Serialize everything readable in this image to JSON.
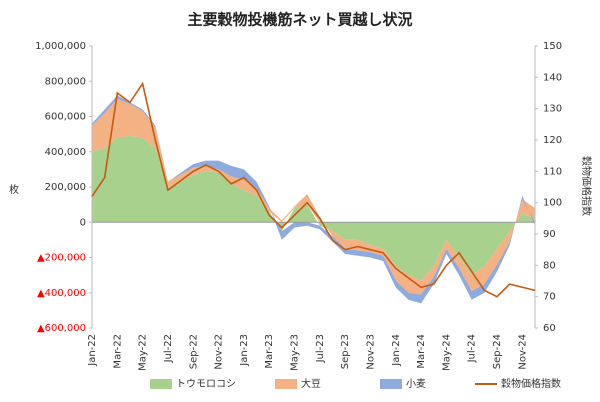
{
  "chart_data": {
    "type": "area",
    "title": "主要穀物投機筋ネット買越し状況",
    "y_label": "枚",
    "y2_label": "穀物価格指数",
    "categories": [
      "Jan-22",
      null,
      "Mar-22",
      null,
      "May-22",
      null,
      "Jul-22",
      null,
      "Sep-22",
      null,
      "Nov-22",
      null,
      "Jan-23",
      null,
      "Mar-23",
      null,
      "May-23",
      null,
      "Jul-23",
      null,
      "Sep-23",
      null,
      "Nov-23",
      null,
      "Jan-24",
      null,
      "Mar-24",
      null,
      "May-24",
      null,
      "Jul-24",
      null,
      "Sep-24",
      null,
      "Nov-24",
      null
    ],
    "series": [
      {
        "name": "トウモロコシ",
        "color": "#a9d18e",
        "values": [
          400000,
          420000,
          480000,
          490000,
          480000,
          420000,
          200000,
          230000,
          270000,
          290000,
          280000,
          220000,
          180000,
          150000,
          60000,
          -50000,
          80000,
          100000,
          -20000,
          -50000,
          -100000,
          -100000,
          -130000,
          -150000,
          -250000,
          -300000,
          -330000,
          -250000,
          -100000,
          -200000,
          -300000,
          -250000,
          -150000,
          -50000,
          50000,
          20000
        ]
      },
      {
        "name": "大豆",
        "color": "#f4b183",
        "values": [
          150000,
          200000,
          220000,
          180000,
          150000,
          120000,
          30000,
          40000,
          40000,
          30000,
          20000,
          40000,
          60000,
          40000,
          20000,
          10000,
          10000,
          60000,
          30000,
          -30000,
          -50000,
          -60000,
          -40000,
          -40000,
          -80000,
          -100000,
          -80000,
          -60000,
          -50000,
          -60000,
          -90000,
          -100000,
          -90000,
          -60000,
          80000,
          60000
        ]
      },
      {
        "name": "小麦",
        "color": "#8faadc",
        "values": [
          10000,
          20000,
          20000,
          10000,
          10000,
          10000,
          0,
          10000,
          20000,
          30000,
          50000,
          60000,
          60000,
          40000,
          10000,
          -50000,
          -30000,
          -20000,
          -20000,
          -30000,
          -30000,
          -30000,
          -30000,
          -30000,
          -40000,
          -40000,
          -50000,
          -40000,
          -30000,
          -40000,
          -50000,
          -50000,
          -40000,
          -20000,
          20000,
          -20000
        ]
      },
      {
        "name": "穀物価格指数",
        "type": "line",
        "axis": "y2",
        "color": "#c55a11",
        "values": [
          102,
          108,
          135,
          132,
          138,
          120,
          104,
          107,
          110,
          112,
          110,
          106,
          108,
          104,
          96,
          92,
          96,
          100,
          95,
          88,
          85,
          86,
          85,
          84,
          79,
          76,
          73,
          74,
          80,
          84,
          78,
          72,
          70,
          74,
          73,
          72
        ]
      }
    ],
    "ylim": [
      -600000,
      1000000
    ],
    "yticks": [
      {
        "value": -600000,
        "label": "▲600,000"
      },
      {
        "value": -400000,
        "label": "▲400,000"
      },
      {
        "value": -200000,
        "label": "▲200,000"
      },
      0,
      {
        "value": 200000,
        "label": "200,000"
      },
      {
        "value": 400000,
        "label": "400,000"
      },
      {
        "value": 600000,
        "label": "600,000"
      },
      {
        "value": 800000,
        "label": "800,000"
      },
      {
        "value": 1000000,
        "label": "1,000,000"
      }
    ],
    "y2lim": [
      60,
      150
    ],
    "y2ticks": [
      60,
      70,
      80,
      90,
      100,
      110,
      120,
      130,
      140,
      150
    ],
    "negative_label_color": "#ff0000",
    "legend": "bottom"
  }
}
